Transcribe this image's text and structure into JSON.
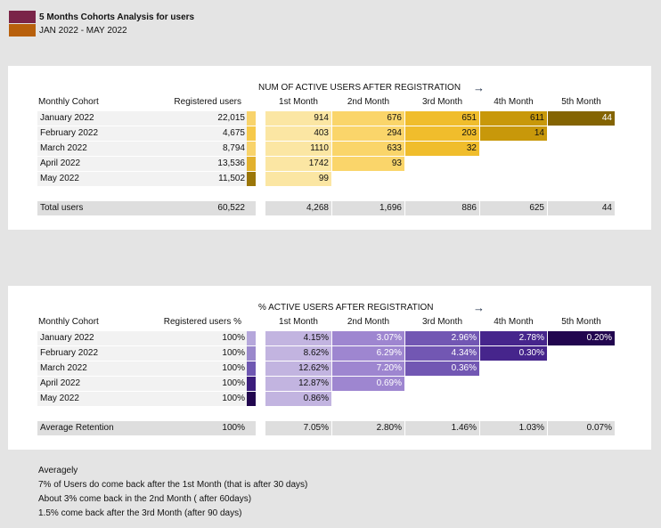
{
  "legend": {
    "title": "5 Months Cohorts Analysis for users",
    "title_color": "#7a2448",
    "subtitle": "JAN 2022 - MAY 2022",
    "subtitle_color": "#b8600c"
  },
  "chart_data": [
    {
      "type": "table",
      "title": "NUM OF ACTIVE USERS AFTER REGISTRATION",
      "arrow": "→",
      "row_header": "Monthly Cohort",
      "reg_header": "Registered users",
      "columns": [
        "1st Month",
        "2nd Month",
        "3rd Month",
        "4th Month",
        "5th Month"
      ],
      "rows": [
        {
          "cohort": "January 2022",
          "registered": "22,015",
          "registered_value": 22015,
          "values": [
            "914",
            "676",
            "651",
            "611",
            "44"
          ]
        },
        {
          "cohort": "February 2022",
          "registered": "4,675",
          "registered_value": 4675,
          "values": [
            "403",
            "294",
            "203",
            "14"
          ]
        },
        {
          "cohort": "March 2022",
          "registered": "8,794",
          "registered_value": 8794,
          "values": [
            "1110",
            "633",
            "32"
          ]
        },
        {
          "cohort": "April 2022",
          "registered": "13,536",
          "registered_value": 13536,
          "values": [
            "1742",
            "93"
          ]
        },
        {
          "cohort": "May 2022",
          "registered": "11,502",
          "registered_value": 11502,
          "values": [
            "99"
          ]
        }
      ],
      "total": {
        "label": "Total users",
        "registered": "60,522",
        "values": [
          "4,268",
          "1,696",
          "886",
          "625",
          "44"
        ]
      },
      "column_colors": [
        "#fbe6a3",
        "#fad56a",
        "#f0bd2c",
        "#c8980a",
        "#846402"
      ],
      "text_colors": [
        "#111111",
        "#111111",
        "#111111",
        "#111111",
        "#ffffff"
      ],
      "bar_colors": [
        "#f8d36b",
        "#f6c94a",
        "#f8d36b",
        "#e2b12e",
        "#9b7608"
      ]
    },
    {
      "type": "table",
      "title": "% ACTIVE USERS AFTER REGISTRATION",
      "arrow": "→",
      "row_header": "Monthly Cohort",
      "reg_header": "Registered users %",
      "columns": [
        "1st Month",
        "2nd Month",
        "3rd Month",
        "4th Month",
        "5th Month"
      ],
      "rows": [
        {
          "cohort": "January 2022",
          "registered": "100%",
          "values": [
            "4.15%",
            "3.07%",
            "2.96%",
            "2.78%",
            "0.20%"
          ]
        },
        {
          "cohort": "February 2022",
          "registered": "100%",
          "values": [
            "8.62%",
            "6.29%",
            "4.34%",
            "0.30%"
          ]
        },
        {
          "cohort": "March 2022",
          "registered": "100%",
          "values": [
            "12.62%",
            "7.20%",
            "0.36%"
          ]
        },
        {
          "cohort": "April 2022",
          "registered": "100%",
          "values": [
            "12.87%",
            "0.69%"
          ]
        },
        {
          "cohort": "May 2022",
          "registered": "100%",
          "values": [
            "0.86%"
          ]
        }
      ],
      "total": {
        "label": "Average Retention",
        "registered": "100%",
        "values": [
          "7.05%",
          "2.80%",
          "1.46%",
          "1.03%",
          "0.07%"
        ]
      },
      "column_colors": [
        "#c2b4e0",
        "#9e86d0",
        "#7257b3",
        "#46258c",
        "#22064f"
      ],
      "text_colors": [
        "#111111",
        "#ffffff",
        "#ffffff",
        "#ffffff",
        "#ffffff"
      ],
      "bar_colors": [
        "#b5a7db",
        "#9a88cc",
        "#6f58b2",
        "#3b1d7c",
        "#22064f"
      ]
    }
  ],
  "notes": [
    "Averagely",
    "7% of Users do come back after the 1st Month (that is after 30 days)",
    "About 3% come back in the 2nd Month ( after 60days)",
    "1.5% come back after the 3rd Month (after 90 days)"
  ]
}
